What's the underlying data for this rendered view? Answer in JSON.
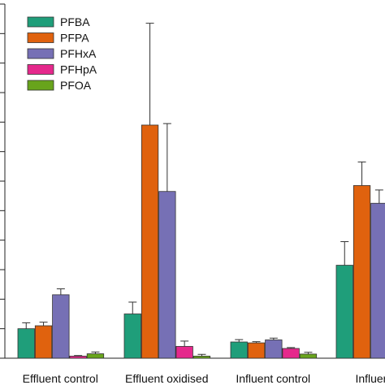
{
  "chart_data": {
    "type": "bar",
    "title": "",
    "xlabel": "",
    "ylabel": "",
    "categories": [
      "Effluent control",
      "Effluent oxidised",
      "Influent control",
      "Influent o"
    ],
    "ylim": [
      0,
      12
    ],
    "grid": false,
    "legend_position": "top-left",
    "series": [
      {
        "name": "PFBA",
        "color": "#1f9e7a",
        "values": [
          1.0,
          1.5,
          0.55,
          3.15
        ],
        "errors": [
          0.2,
          0.4,
          0.08,
          0.8
        ]
      },
      {
        "name": "PFPA",
        "color": "#e0620e",
        "values": [
          1.1,
          7.9,
          0.52,
          5.85
        ],
        "errors": [
          0.12,
          3.45,
          0.04,
          0.8
        ]
      },
      {
        "name": "PFHxA",
        "color": "#7670b5",
        "values": [
          2.15,
          5.65,
          0.62,
          5.25
        ],
        "errors": [
          0.2,
          2.3,
          0.06,
          0.45
        ]
      },
      {
        "name": "PFHpA",
        "color": "#e5288c",
        "values": [
          0.07,
          0.4,
          0.33,
          0
        ],
        "errors": [
          0.02,
          0.18,
          0.03,
          0
        ]
      },
      {
        "name": "PFOA",
        "color": "#68a41c",
        "values": [
          0.15,
          0.07,
          0.14,
          0
        ],
        "errors": [
          0.06,
          0.06,
          0.06,
          0
        ]
      }
    ]
  }
}
